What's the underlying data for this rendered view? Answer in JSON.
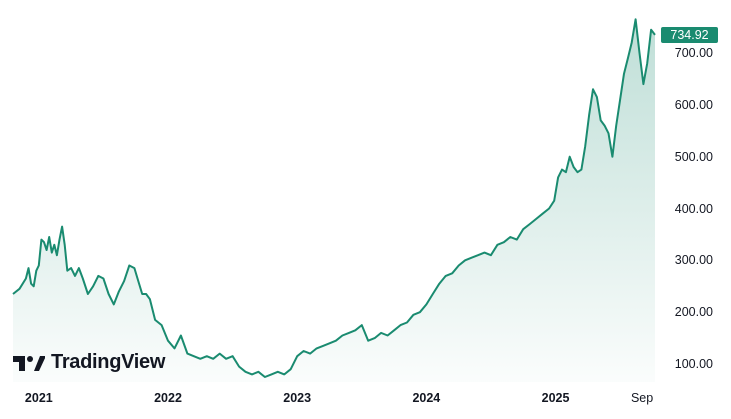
{
  "brand": {
    "name": "TradingView",
    "logo_icon": "tradingview-logo-icon"
  },
  "colors": {
    "line": "#1a8b70",
    "fill_top": "#1a8b70",
    "badge": "#1a8b70"
  },
  "last_price": "734.92",
  "chart_data": {
    "type": "area",
    "title": "",
    "xlabel": "",
    "ylabel": "",
    "x_ticks": [
      "2021",
      "2022",
      "2023",
      "2024",
      "2025",
      "Sep"
    ],
    "y_ticks": [
      "100.00",
      "200.00",
      "300.00",
      "400.00",
      "500.00",
      "600.00",
      "700.00"
    ],
    "ylim": [
      70,
      770
    ],
    "xlim": [
      2020.8,
      2025.77
    ],
    "grid": false,
    "last_value": 734.92,
    "series": [
      {
        "x": [
          2020.8,
          2020.85,
          2020.9,
          2020.92,
          2020.94,
          2020.96,
          2020.98,
          2021.0,
          2021.02,
          2021.04,
          2021.06,
          2021.08,
          2021.1,
          2021.12,
          2021.14,
          2021.16,
          2021.18,
          2021.2,
          2021.22,
          2021.25,
          2021.28,
          2021.31,
          2021.34,
          2021.38,
          2021.42,
          2021.46,
          2021.5,
          2021.54,
          2021.58,
          2021.62,
          2021.66,
          2021.7,
          2021.74,
          2021.77,
          2021.8,
          2021.83,
          2021.86,
          2021.9,
          2021.95,
          2022.0,
          2022.05,
          2022.1,
          2022.15,
          2022.2,
          2022.25,
          2022.3,
          2022.35,
          2022.4,
          2022.45,
          2022.5,
          2022.55,
          2022.6,
          2022.65,
          2022.7,
          2022.75,
          2022.8,
          2022.85,
          2022.9,
          2022.95,
          2023.0,
          2023.05,
          2023.1,
          2023.15,
          2023.2,
          2023.25,
          2023.3,
          2023.35,
          2023.4,
          2023.45,
          2023.5,
          2023.55,
          2023.6,
          2023.65,
          2023.7,
          2023.75,
          2023.8,
          2023.85,
          2023.9,
          2023.95,
          2024.0,
          2024.05,
          2024.1,
          2024.15,
          2024.2,
          2024.25,
          2024.3,
          2024.35,
          2024.4,
          2024.45,
          2024.5,
          2024.55,
          2024.6,
          2024.65,
          2024.7,
          2024.75,
          2024.8,
          2024.85,
          2024.9,
          2024.95,
          2024.99,
          2025.02,
          2025.05,
          2025.08,
          2025.11,
          2025.14,
          2025.17,
          2025.2,
          2025.23,
          2025.26,
          2025.29,
          2025.32,
          2025.35,
          2025.38,
          2025.41,
          2025.44,
          2025.47,
          2025.5,
          2025.53,
          2025.56,
          2025.59,
          2025.62,
          2025.65,
          2025.68,
          2025.71,
          2025.74,
          2025.77
        ],
        "values": [
          235,
          245,
          265,
          285,
          255,
          250,
          280,
          290,
          340,
          335,
          320,
          345,
          315,
          330,
          310,
          340,
          365,
          330,
          280,
          285,
          270,
          285,
          265,
          235,
          250,
          270,
          265,
          235,
          215,
          240,
          260,
          290,
          285,
          260,
          235,
          235,
          225,
          185,
          175,
          145,
          130,
          155,
          120,
          115,
          110,
          115,
          110,
          120,
          110,
          115,
          95,
          85,
          80,
          85,
          75,
          80,
          85,
          80,
          90,
          115,
          125,
          120,
          130,
          135,
          140,
          145,
          155,
          160,
          165,
          175,
          145,
          150,
          160,
          155,
          165,
          175,
          180,
          195,
          200,
          215,
          235,
          255,
          270,
          275,
          290,
          300,
          305,
          310,
          315,
          310,
          330,
          335,
          345,
          340,
          360,
          370,
          380,
          390,
          400,
          415,
          460,
          475,
          470,
          500,
          480,
          470,
          475,
          520,
          580,
          630,
          615,
          570,
          560,
          545,
          500,
          560,
          610,
          660,
          690,
          720,
          765,
          700,
          640,
          680,
          745,
          734.92
        ]
      }
    ]
  }
}
